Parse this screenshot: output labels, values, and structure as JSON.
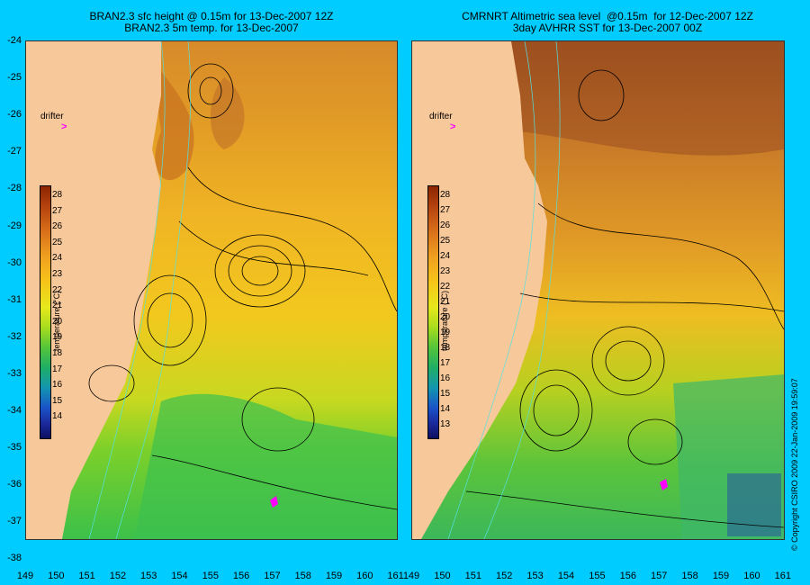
{
  "left_panel": {
    "title_line1": "BRAN2.3 sfc height @ 0.15m for 13-Dec-2007 12Z",
    "title_line2": "BRAN2.3 5m temp. for 13-Dec-2007",
    "drifter_label": "drifter",
    "colorbar_ticks": [
      "28",
      "27",
      "26",
      "25",
      "24",
      "23",
      "22",
      "21",
      "20",
      "19",
      "18",
      "17",
      "16",
      "15",
      "14"
    ],
    "colorbar_title": "temperature (°C)"
  },
  "right_panel": {
    "title_line1": "CMRNRT Altimetric sea level  @0.15m  for 12-Dec-2007 12Z",
    "title_line2": "3day AVHRR SST for 13-Dec-2007 00Z",
    "drifter_label": "drifter",
    "colorbar_ticks": [
      "28",
      "27",
      "26",
      "25",
      "24",
      "23",
      "22",
      "21",
      "20",
      "19",
      "18",
      "17",
      "16",
      "15",
      "14",
      "13"
    ],
    "colorbar_title": "temperature (°C)"
  },
  "y_axis_labels": [
    "-24",
    "-25",
    "-26",
    "-27",
    "-28",
    "-29",
    "-30",
    "-31",
    "-32",
    "-33",
    "-34",
    "-35",
    "-36",
    "-37",
    "-38"
  ],
  "x_axis_left": [
    "149",
    "150",
    "151",
    "152",
    "153",
    "154",
    "155",
    "156",
    "157",
    "158",
    "159",
    "160",
    "161"
  ],
  "x_axis_right": [
    "149",
    "150",
    "151",
    "152",
    "153",
    "154",
    "155",
    "156",
    "157",
    "158",
    "159",
    "160",
    "161"
  ],
  "copyright": "© Copyright CSIRO 2009   22-Jan-2009 19:59:07",
  "colors": {
    "background": "#00ccff",
    "land": "#f7c89a",
    "contour": "#000000",
    "bathy": "#55e0e0",
    "drifter": "#ff00ff"
  }
}
